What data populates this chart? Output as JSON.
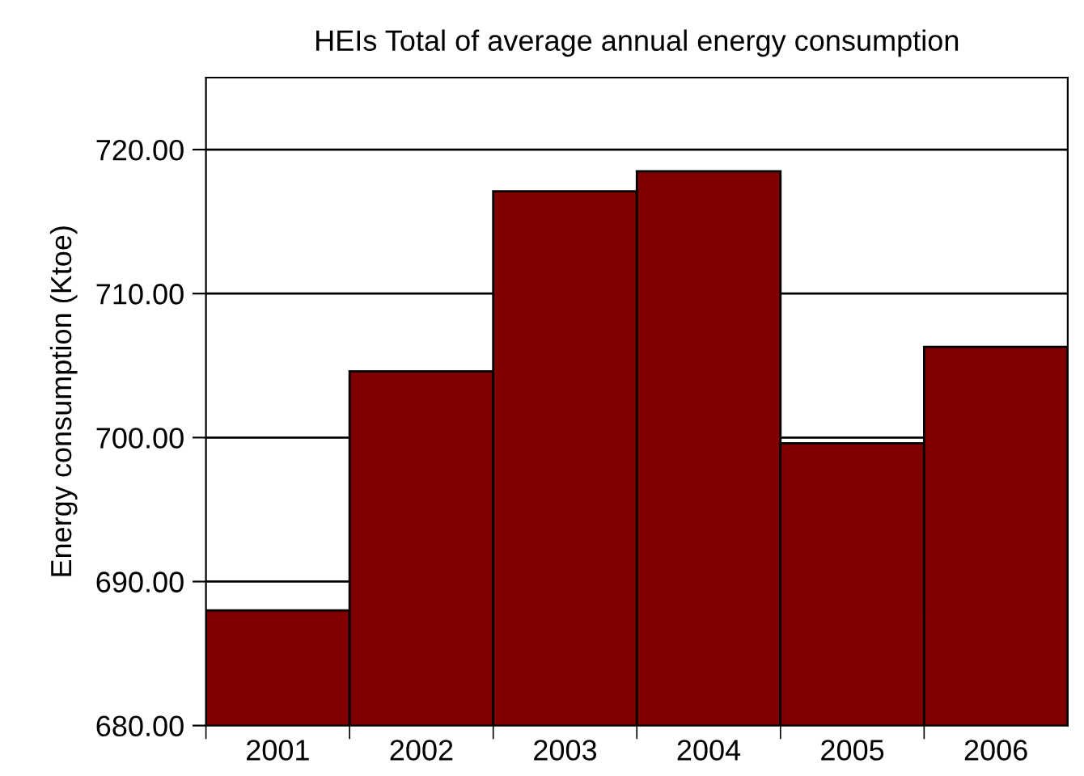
{
  "chart_data": {
    "type": "bar",
    "title": "HEIs Total of average annual energy consumption",
    "ylabel": "Energy consumption (Ktoe)",
    "categories": [
      "2001",
      "2002",
      "2003",
      "2004",
      "2005",
      "2006"
    ],
    "values": [
      688.0,
      704.6,
      717.1,
      718.5,
      699.6,
      706.3
    ],
    "color": "#800000",
    "ylim": [
      680,
      725
    ],
    "yticks": [
      {
        "value": 680,
        "label": "680.00"
      },
      {
        "value": 690,
        "label": "690.00"
      },
      {
        "value": 700,
        "label": "700.00"
      },
      {
        "value": 710,
        "label": "710.00"
      },
      {
        "value": 720,
        "label": "720.00"
      }
    ],
    "grid": "y"
  }
}
